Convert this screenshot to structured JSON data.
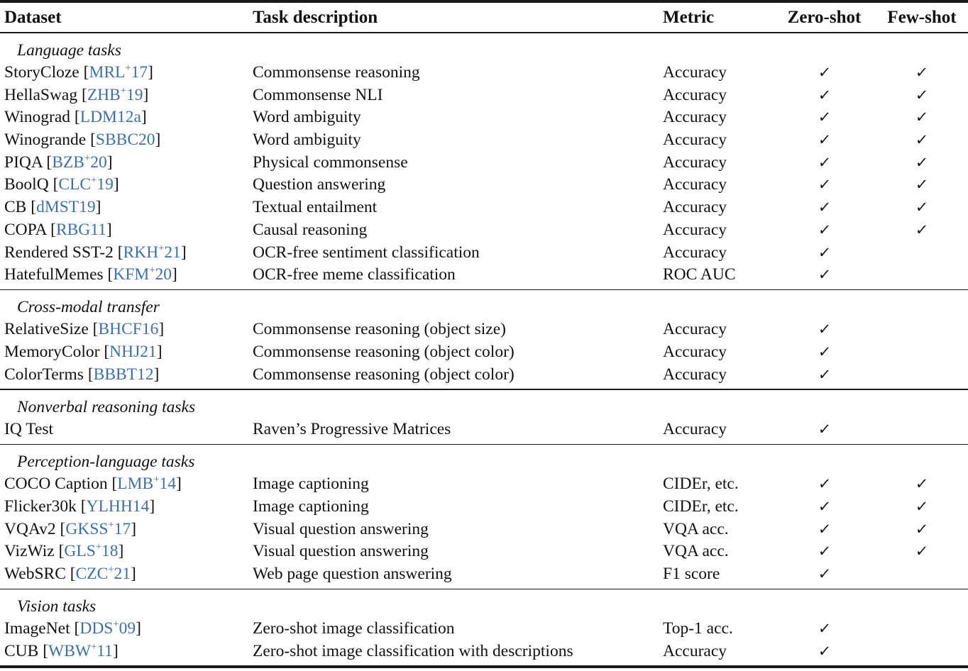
{
  "page": {
    "background": "#ffffff",
    "text_color": "#111111",
    "citation_color": "#3E6FA6",
    "rule_color": "#1a1a1a"
  },
  "table": {
    "headers": {
      "dataset": "Dataset",
      "task": "Task description",
      "metric": "Metric",
      "zero_shot": "Zero-shot",
      "few_shot": "Few-shot"
    },
    "check_glyph": "✓",
    "sections": [
      {
        "title": "Language tasks",
        "rows": [
          {
            "dataset": "StoryCloze",
            "citation": "MRL+17",
            "sup": true,
            "task": "Commonsense reasoning",
            "metric": "Accuracy",
            "zero": true,
            "few": true
          },
          {
            "dataset": "HellaSwag",
            "citation": "ZHB+19",
            "sup": true,
            "task": "Commonsense NLI",
            "metric": "Accuracy",
            "zero": true,
            "few": true
          },
          {
            "dataset": "Winograd",
            "citation": "LDM12a",
            "sup": false,
            "task": "Word ambiguity",
            "metric": "Accuracy",
            "zero": true,
            "few": true
          },
          {
            "dataset": "Winogrande",
            "citation": "SBBC20",
            "sup": false,
            "task": "Word ambiguity",
            "metric": "Accuracy",
            "zero": true,
            "few": true
          },
          {
            "dataset": "PIQA",
            "citation": "BZB+20",
            "sup": true,
            "task": "Physical commonsense",
            "metric": "Accuracy",
            "zero": true,
            "few": true
          },
          {
            "dataset": "BoolQ",
            "citation": "CLC+19",
            "sup": true,
            "task": "Question answering",
            "metric": "Accuracy",
            "zero": true,
            "few": true
          },
          {
            "dataset": "CB",
            "citation": "dMST19",
            "sup": false,
            "task": "Textual entailment",
            "metric": "Accuracy",
            "zero": true,
            "few": true
          },
          {
            "dataset": "COPA",
            "citation": "RBG11",
            "sup": false,
            "task": "Causal reasoning",
            "metric": "Accuracy",
            "zero": true,
            "few": true
          },
          {
            "dataset": "Rendered SST-2",
            "citation": "RKH+21",
            "sup": true,
            "task": "OCR-free sentiment classification",
            "metric": "Accuracy",
            "zero": true,
            "few": false
          },
          {
            "dataset": "HatefulMemes",
            "citation": "KFM+20",
            "sup": true,
            "task": "OCR-free meme classification",
            "metric": "ROC AUC",
            "zero": true,
            "few": false
          }
        ]
      },
      {
        "title": "Cross-modal transfer",
        "rows": [
          {
            "dataset": "RelativeSize",
            "citation": "BHCF16",
            "sup": false,
            "task": "Commonsense reasoning (object size)",
            "metric": "Accuracy",
            "zero": true,
            "few": false
          },
          {
            "dataset": "MemoryColor",
            "citation": "NHJ21",
            "sup": false,
            "task": "Commonsense reasoning (object color)",
            "metric": "Accuracy",
            "zero": true,
            "few": false
          },
          {
            "dataset": "ColorTerms",
            "citation": "BBBT12",
            "sup": false,
            "task": "Commonsense reasoning (object color)",
            "metric": "Accuracy",
            "zero": true,
            "few": false
          }
        ]
      },
      {
        "title": "Nonverbal reasoning tasks",
        "rows": [
          {
            "dataset": "IQ Test",
            "citation": null,
            "sup": false,
            "task": "Raven’s Progressive Matrices",
            "metric": "Accuracy",
            "zero": true,
            "few": false
          }
        ]
      },
      {
        "title": "Perception-language tasks",
        "rows": [
          {
            "dataset": "COCO Caption",
            "citation": "LMB+14",
            "sup": true,
            "task": "Image captioning",
            "metric": "CIDEr, etc.",
            "zero": true,
            "few": true
          },
          {
            "dataset": "Flicker30k",
            "citation": "YLHH14",
            "sup": false,
            "task": "Image captioning",
            "metric": "CIDEr, etc.",
            "zero": true,
            "few": true
          },
          {
            "dataset": "VQAv2",
            "citation": "GKSS+17",
            "sup": true,
            "task": "Visual question answering",
            "metric": "VQA acc.",
            "zero": true,
            "few": true
          },
          {
            "dataset": "VizWiz",
            "citation": "GLS+18",
            "sup": true,
            "task": "Visual question answering",
            "metric": "VQA acc.",
            "zero": true,
            "few": true
          },
          {
            "dataset": "WebSRC",
            "citation": "CZC+21",
            "sup": true,
            "task": "Web page question answering",
            "metric": "F1 score",
            "zero": true,
            "few": false
          }
        ]
      },
      {
        "title": "Vision tasks",
        "rows": [
          {
            "dataset": "ImageNet",
            "citation": "DDS+09",
            "sup": true,
            "task": "Zero-shot image classification",
            "metric": "Top-1 acc.",
            "zero": true,
            "few": false
          },
          {
            "dataset": "CUB",
            "citation": "WBW+11",
            "sup": true,
            "task": "Zero-shot image classification with descriptions",
            "metric": "Accuracy",
            "zero": true,
            "few": false
          }
        ]
      }
    ]
  }
}
